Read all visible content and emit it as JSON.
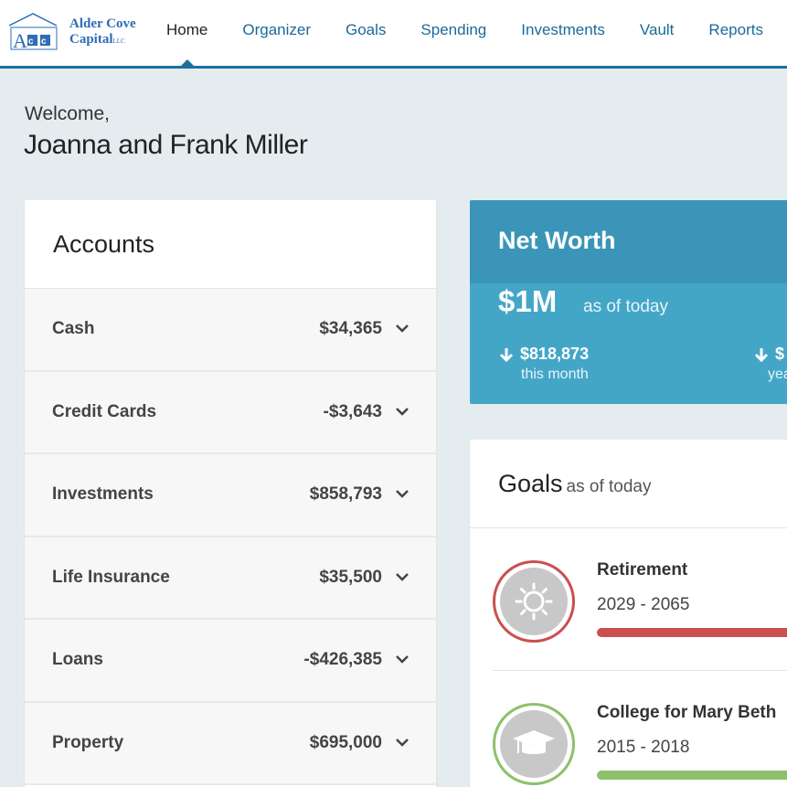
{
  "brand": {
    "name_line1": "Alder Cove",
    "name_line2": "Capital",
    "suffix": "LLC",
    "color": "#2c6db5"
  },
  "nav": {
    "items": [
      "Home",
      "Organizer",
      "Goals",
      "Spending",
      "Investments",
      "Vault",
      "Reports"
    ],
    "active": "Home",
    "accent": "#1e6f9e"
  },
  "welcome": {
    "greeting": "Welcome,",
    "names": "Joanna and Frank Miller"
  },
  "accounts": {
    "title": "Accounts",
    "rows": [
      {
        "name": "Cash",
        "value": "$34,365",
        "icon": "chevron-down-icon"
      },
      {
        "name": "Credit Cards",
        "value": "-$3,643",
        "icon": "chevron-down-icon"
      },
      {
        "name": "Investments",
        "value": "$858,793",
        "icon": "chevron-down-icon"
      },
      {
        "name": "Life Insurance",
        "value": "$35,500",
        "icon": "chevron-down-icon"
      },
      {
        "name": "Loans",
        "value": "-$426,385",
        "icon": "chevron-down-icon"
      },
      {
        "name": "Property",
        "value": "$695,000",
        "icon": "chevron-down-icon"
      }
    ]
  },
  "net_worth": {
    "title": "Net Worth",
    "value": "$1M",
    "as_of": "as of today",
    "month_change": "$818,873",
    "month_label": "this month",
    "year_change": "$",
    "year_label": "yea",
    "color": "#44a6c7",
    "header_color": "#3a95b8"
  },
  "goals": {
    "title": "Goals",
    "as_of": "as of today",
    "items": [
      {
        "name": "Retirement",
        "years": "2029 - 2065",
        "icon": "sun-icon",
        "color": "#c9504e"
      },
      {
        "name": "College for Mary Beth",
        "years": "2015 - 2018",
        "icon": "graduation-cap-icon",
        "color": "#8cc06a"
      }
    ]
  }
}
